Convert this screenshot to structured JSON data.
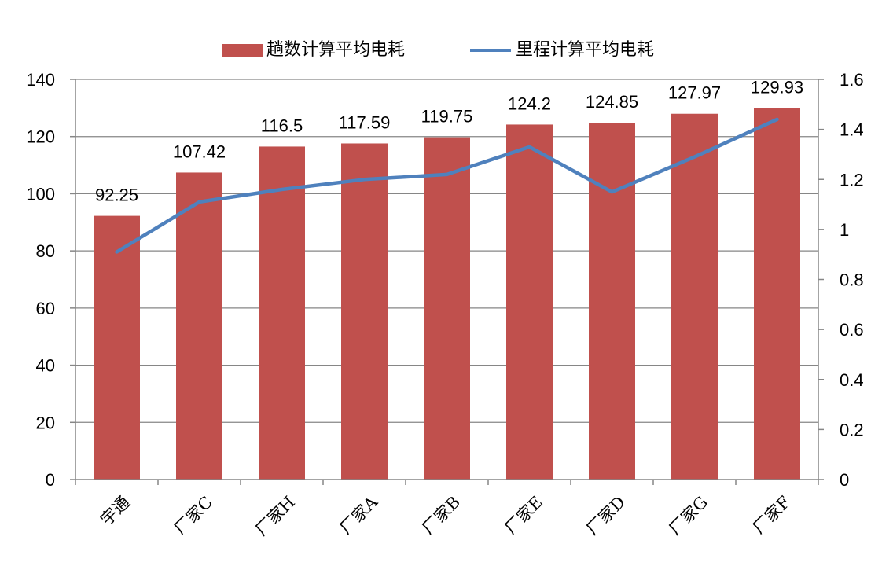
{
  "chart_data": {
    "type": "bar+line",
    "categories": [
      "宇通",
      "厂家C",
      "厂家H",
      "厂家A",
      "厂家B",
      "厂家E",
      "厂家D",
      "厂家G",
      "厂家F"
    ],
    "series": [
      {
        "name": "趟数计算平均电耗",
        "type": "bar",
        "axis": "left",
        "values": [
          92.25,
          107.42,
          116.5,
          117.59,
          119.75,
          124.2,
          124.85,
          127.97,
          129.93
        ],
        "labels": [
          "92.25",
          "107.42",
          "116.5",
          "117.59",
          "119.75",
          "124.2",
          "124.85",
          "127.97",
          "129.93"
        ]
      },
      {
        "name": "里程计算平均电耗",
        "type": "line",
        "axis": "right",
        "values": [
          0.91,
          1.11,
          1.16,
          1.2,
          1.22,
          1.33,
          1.15,
          1.29,
          1.44
        ]
      }
    ],
    "left_axis": {
      "min": 0,
      "max": 140,
      "step": 20,
      "ticks": [
        "0",
        "20",
        "40",
        "60",
        "80",
        "100",
        "120",
        "140"
      ]
    },
    "right_axis": {
      "min": 0,
      "max": 1.6,
      "step": 0.2,
      "ticks": [
        "0",
        "0.2",
        "0.4",
        "0.6",
        "0.8",
        "1",
        "1.2",
        "1.4",
        "1.6"
      ]
    },
    "grid": true,
    "legend_position": "top-center",
    "colors": {
      "bar": "#c0504d",
      "line": "#4f81bd",
      "grid": "#868686",
      "axis": "#868686"
    }
  }
}
